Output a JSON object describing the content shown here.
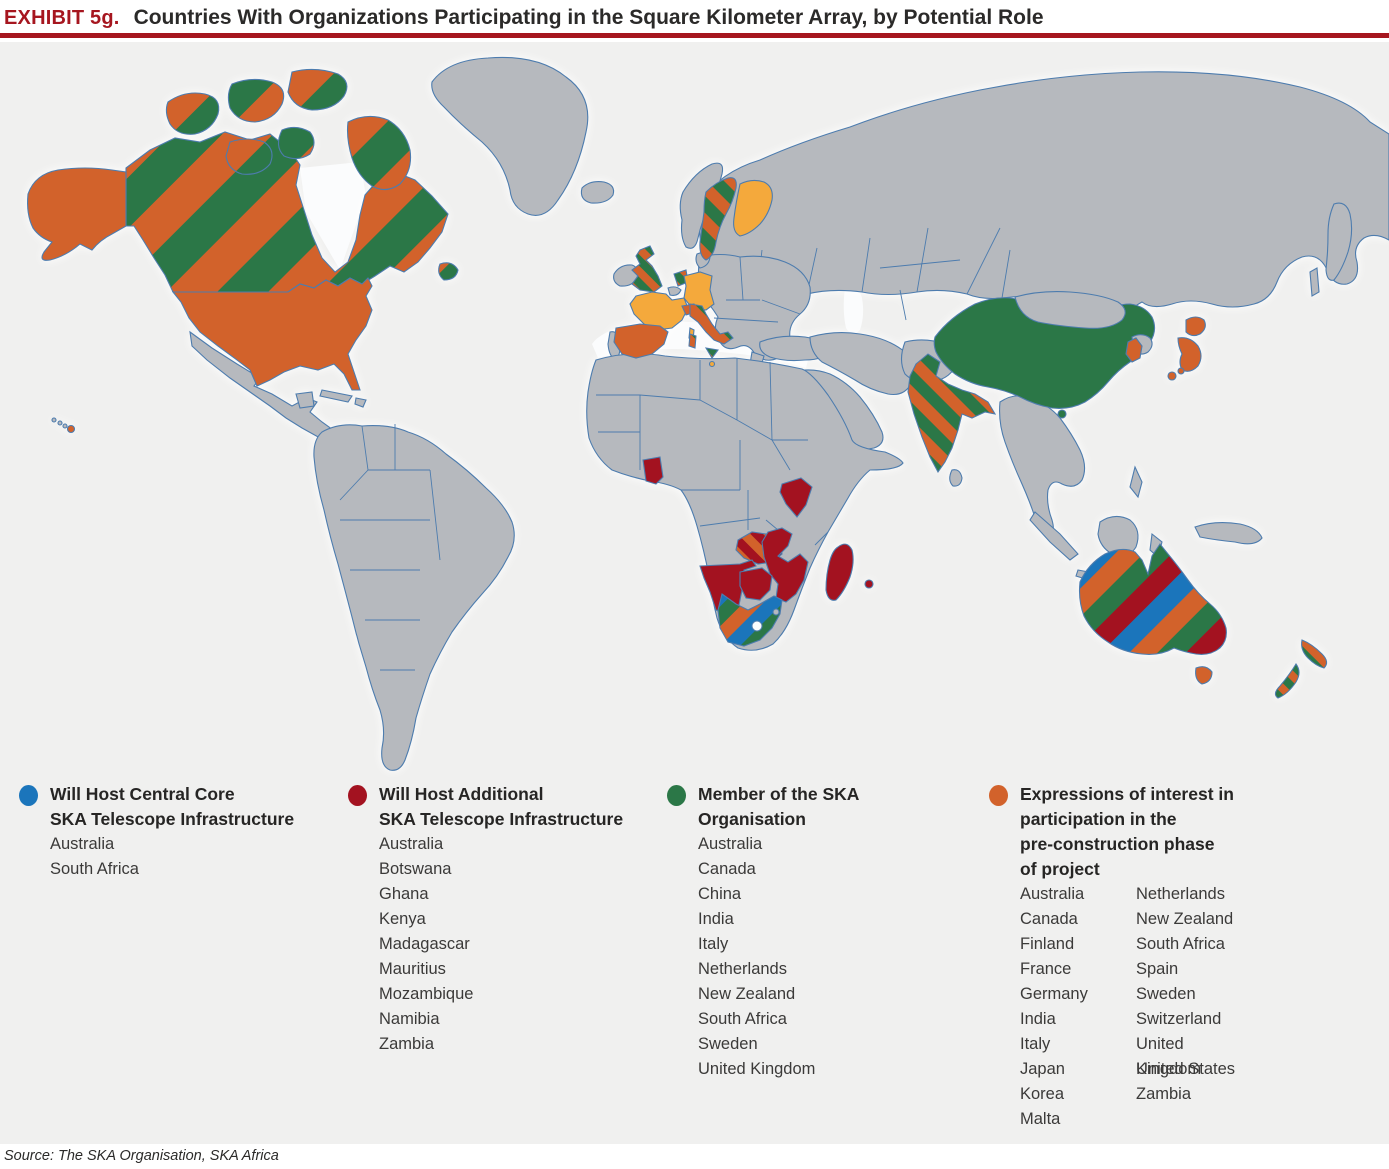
{
  "header": {
    "exhibit_label": "EXHIBIT 5g.",
    "title": "Countries With Organizations Participating in the Square Kilometer Array, by Potential Role"
  },
  "source": {
    "text": "Source:  The SKA Organisation, SKA Africa"
  },
  "legend": [
    {
      "id": "central-core",
      "color": "#1b75bb",
      "title": "Will Host Central Core\nSKA Telescope Infrastructure",
      "countries": [
        "Australia",
        "South Africa"
      ]
    },
    {
      "id": "additional-infrastructure",
      "color": "#a31220",
      "title": "Will Host Additional\nSKA Telescope Infrastructure",
      "countries": [
        "Australia",
        "Botswana",
        "Ghana",
        "Kenya",
        "Madagascar",
        "Mauritius",
        "Mozambique",
        "Namibia",
        "Zambia"
      ]
    },
    {
      "id": "ska-member",
      "color": "#2b7747",
      "title": "Member of the SKA\nOrganisation",
      "countries": [
        "Australia",
        "Canada",
        "China",
        "India",
        "Italy",
        "Netherlands",
        "New Zealand",
        "South Africa",
        "Sweden",
        "United Kingdom"
      ]
    },
    {
      "id": "expression-of-interest",
      "color": "#d2622b",
      "title": "Expressions of interest in\nparticipation in the\npre-construction phase\nof project",
      "countries_col1": [
        "Australia",
        "Canada",
        "Finland",
        "France",
        "Germany",
        "India",
        "Italy",
        "Japan",
        "Korea",
        "Malta"
      ],
      "countries_col2": [
        "Netherlands",
        "New Zealand",
        "South Africa",
        "Spain",
        "Sweden",
        "Switzerland",
        "United Kingdom",
        "United States",
        "Zambia"
      ]
    }
  ],
  "map": {
    "paints": {
      "core": "#1b75bb",
      "additional": "#a31220",
      "member": "#2b7747",
      "interest": "#d2622b",
      "interest_alt": "#f4a93c",
      "none": "#b6b9be"
    },
    "fills": {
      "greenland": "#b6b9be",
      "iceland": "#b6b9be",
      "mexico": "#b6b9be",
      "yucatan": "#b6b9be",
      "cuba": "#b6b9be",
      "hispaniola": "#b6b9be",
      "south_america": "#b6b9be",
      "eurasia": "#b6b9be",
      "kamchatka": "#b6b9be",
      "sakhalin": "#b6b9be",
      "europe_east": "#b6b9be",
      "greece": "#b6b9be",
      "turkey": "#b6b9be",
      "middle_east": "#b6b9be",
      "arabia": "#b6b9be",
      "afghan_pak": "#b6b9be",
      "se_asia": "#b6b9be",
      "mongolia": "#b6b9be",
      "north_korea": "#b6b9be",
      "sumatra": "#b6b9be",
      "java": "#b6b9be",
      "borneo": "#b6b9be",
      "sulawesi": "#b6b9be",
      "new_guinea": "#b6b9be",
      "philippines": "#b6b9be",
      "timor": "#b6b9be",
      "sri_lanka": "#b6b9be",
      "norway": "#b6b9be",
      "denmark": "#b6b9be",
      "ireland": "#b6b9be",
      "portugal": "#b6b9be",
      "belgium": "#b6b9be",
      "africa": "#b6b9be",
      "swaziland": "#b6b9be",
      "hawaii_minor": "#b6b9be",
      "alaska": "#d2622b",
      "usa": "#d2622b",
      "hawaii_big": "#d2622b",
      "canada": "url(#pat-ca)",
      "newfoundland": "url(#pat-ca)",
      "ghana": "#a31220",
      "kenya": "#a31220",
      "mozambique": "#a31220",
      "madagascar": "#a31220",
      "mauritius": "#a31220",
      "namibia": "#a31220",
      "botswana": "#a31220",
      "zambia": "url(#pat-zm)",
      "south_africa": "url(#pat-za)",
      "uk": "url(#pat-sm)",
      "netherlands": "url(#pat-sm)",
      "new_zealand": "url(#pat-sm)",
      "sweden": "url(#pat-md)",
      "italy": "url(#pat-md)",
      "india": "url(#pat-md)",
      "finland": "#f4a93c",
      "france": "#f4a93c",
      "corsica": "#f4a93c",
      "germany": "#f4a93c",
      "malta": "#f4a93c",
      "spain": "#d2622b",
      "switzerland": "#d2622b",
      "japan": "#d2622b",
      "south_korea": "#d2622b",
      "tasmania": "#d2622b",
      "china": "#2b7747",
      "hainan": "#2b7747",
      "australia": "url(#pat-au)"
    }
  }
}
